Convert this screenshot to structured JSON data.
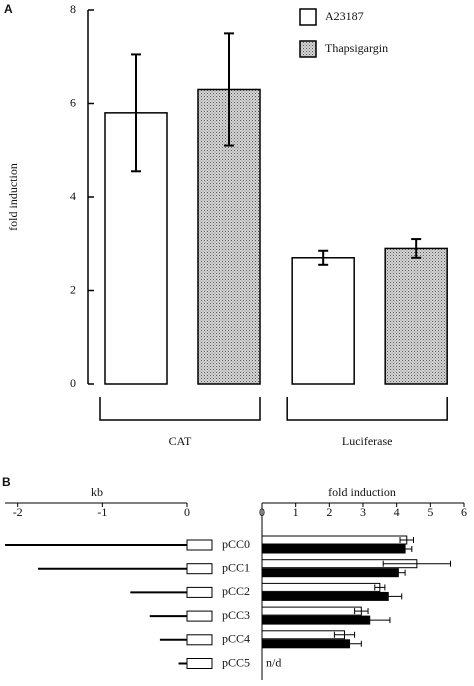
{
  "chart_data": [
    {
      "type": "bar",
      "panel": "A",
      "ylabel": "fold induction",
      "categories": [
        "CAT",
        "Luciferase"
      ],
      "series": [
        {
          "name": "A23187",
          "color": "#ffffff",
          "values": [
            5.8,
            2.7
          ],
          "errors": [
            1.25,
            0.15
          ]
        },
        {
          "name": "Thapsigargin",
          "color": "#b8b8b8",
          "pattern": "stipple",
          "values": [
            6.3,
            2.9
          ],
          "errors": [
            1.2,
            0.2
          ]
        }
      ],
      "ylim": [
        0,
        8
      ],
      "yticks": [
        0,
        2,
        4,
        6,
        8
      ],
      "legend": "top-right"
    },
    {
      "type": "range",
      "xlabel": "kb",
      "xlim": [
        -2.15,
        0
      ],
      "xticks": [
        -2,
        -1,
        0
      ],
      "values": [
        -2.15,
        -1.76,
        -0.67,
        -0.44,
        -0.32,
        -0.1
      ]
    },
    {
      "type": "barh",
      "panel": "B",
      "xlabel": "fold induction",
      "categories": [
        "pCC0",
        "pCC1",
        "pCC2",
        "pCC3",
        "pCC4",
        "pCC5"
      ],
      "series": [
        {
          "color": "#ffffff",
          "values": [
            4.3,
            4.6,
            3.5,
            2.95,
            2.45,
            null
          ],
          "errors": [
            0.2,
            1.0,
            0.15,
            0.2,
            0.3,
            null
          ]
        },
        {
          "color": "#000000",
          "values": [
            4.25,
            4.05,
            3.75,
            3.2,
            2.6,
            null
          ],
          "errors": [
            0.2,
            0.2,
            0.4,
            0.6,
            0.35,
            null
          ]
        }
      ],
      "annotation": "n/d",
      "xlim": [
        0,
        6
      ],
      "xticks": [
        0,
        1,
        2,
        3,
        4,
        5,
        6
      ]
    }
  ]
}
